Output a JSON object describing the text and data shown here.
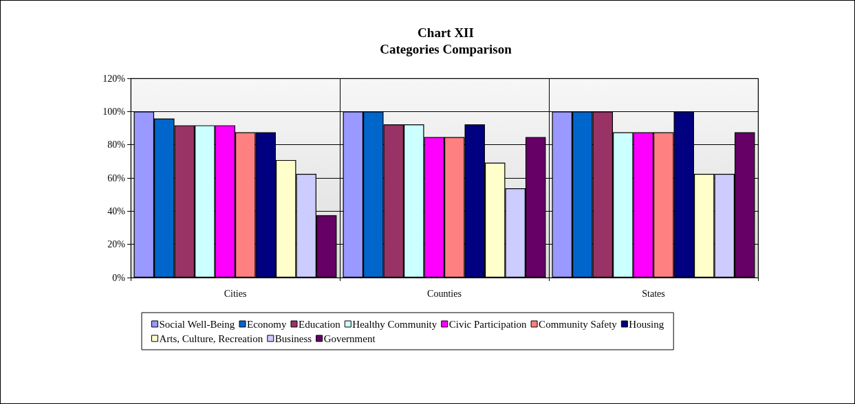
{
  "chart_data": {
    "type": "bar",
    "title": "Chart XII\nCategories Comparison",
    "categories": [
      "Cities",
      "Counties",
      "States"
    ],
    "series": [
      {
        "name": "Social Well-Being",
        "color": "#9999ff",
        "values": [
          100,
          100,
          100
        ]
      },
      {
        "name": "Economy",
        "color": "#0066cc",
        "values": [
          95.8,
          100,
          100
        ]
      },
      {
        "name": "Education",
        "color": "#993366",
        "values": [
          91.7,
          92.3,
          100
        ]
      },
      {
        "name": "Healthy Community",
        "color": "#ccffff",
        "values": [
          91.7,
          92.3,
          87.5
        ]
      },
      {
        "name": "Civic Participation",
        "color": "#ff00ff",
        "values": [
          91.7,
          84.6,
          87.5
        ]
      },
      {
        "name": "Community Safety",
        "color": "#ff8080",
        "values": [
          87.5,
          84.6,
          87.5
        ]
      },
      {
        "name": "Housing",
        "color": "#000080",
        "values": [
          87.5,
          92.3,
          100
        ]
      },
      {
        "name": "Arts, Culture, Recreation",
        "color": "#ffffcc",
        "values": [
          70.8,
          69.2,
          62.5
        ]
      },
      {
        "name": "Business",
        "color": "#ccccff",
        "values": [
          62.5,
          53.8,
          62.5
        ]
      },
      {
        "name": "Government",
        "color": "#660066",
        "values": [
          37.5,
          84.6,
          87.5
        ]
      }
    ],
    "ylim": [
      0,
      120
    ],
    "yticks": [
      {
        "value": 0,
        "label": "0%"
      },
      {
        "value": 20,
        "label": "20%"
      },
      {
        "value": 40,
        "label": "40%"
      },
      {
        "value": 60,
        "label": "60%"
      },
      {
        "value": 80,
        "label": "80%"
      },
      {
        "value": 100,
        "label": "100%"
      },
      {
        "value": 120,
        "label": "120%"
      }
    ],
    "grid": "y",
    "legend": "bottom"
  }
}
